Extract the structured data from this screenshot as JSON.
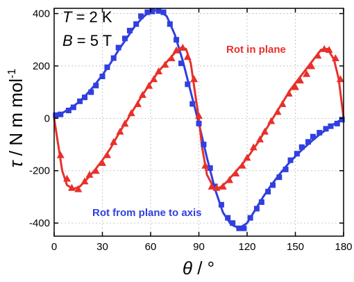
{
  "chart_data": {
    "type": "scatter",
    "xlabel": "θ / °",
    "ylabel": "τ / N m mol-1",
    "xlim": [
      0,
      180
    ],
    "ylim": [
      -450,
      420
    ],
    "xticks": [
      0,
      30,
      60,
      90,
      120,
      150,
      180
    ],
    "yticks": [
      -400,
      -200,
      0,
      200,
      400
    ],
    "grid": true,
    "annotations": {
      "temperature": "T = 2 K",
      "field": "B = 5 T"
    },
    "series": [
      {
        "name": "Rot from plane to axis",
        "color": "#2f3fe0",
        "marker": "square",
        "points": [
          [
            1,
            12
          ],
          [
            4,
            15
          ],
          [
            9,
            30
          ],
          [
            12,
            42
          ],
          [
            16,
            65
          ],
          [
            19,
            80
          ],
          [
            23,
            100
          ],
          [
            26,
            125
          ],
          [
            30,
            160
          ],
          [
            33,
            195
          ],
          [
            37,
            230
          ],
          [
            40,
            270
          ],
          [
            44,
            305
          ],
          [
            47,
            335
          ],
          [
            51,
            360
          ],
          [
            54,
            390
          ],
          [
            58,
            405
          ],
          [
            61,
            408
          ],
          [
            65,
            410
          ],
          [
            68,
            405
          ],
          [
            72,
            360
          ],
          [
            76,
            300
          ],
          [
            79,
            210
          ],
          [
            83,
            130
          ],
          [
            86,
            55
          ],
          [
            90,
            -20
          ],
          [
            93,
            -100
          ],
          [
            97,
            -190
          ],
          [
            100,
            -260
          ],
          [
            104,
            -330
          ],
          [
            108,
            -380
          ],
          [
            111,
            -400
          ],
          [
            115,
            -420
          ],
          [
            118,
            -420
          ],
          [
            122,
            -380
          ],
          [
            126,
            -345
          ],
          [
            129,
            -320
          ],
          [
            133,
            -280
          ],
          [
            136,
            -255
          ],
          [
            140,
            -225
          ],
          [
            144,
            -195
          ],
          [
            147,
            -160
          ],
          [
            151,
            -135
          ],
          [
            154,
            -110
          ],
          [
            158,
            -90
          ],
          [
            161,
            -70
          ],
          [
            165,
            -55
          ],
          [
            169,
            -40
          ],
          [
            172,
            -30
          ],
          [
            176,
            -20
          ],
          [
            179,
            -5
          ]
        ],
        "fit": [
          [
            0,
            0
          ],
          [
            5,
            20
          ],
          [
            10,
            38
          ],
          [
            15,
            60
          ],
          [
            20,
            90
          ],
          [
            25,
            125
          ],
          [
            30,
            165
          ],
          [
            35,
            210
          ],
          [
            40,
            260
          ],
          [
            45,
            305
          ],
          [
            50,
            350
          ],
          [
            55,
            385
          ],
          [
            60,
            410
          ],
          [
            65,
            413
          ],
          [
            70,
            390
          ],
          [
            75,
            320
          ],
          [
            80,
            220
          ],
          [
            85,
            100
          ],
          [
            90,
            -20
          ],
          [
            95,
            -150
          ],
          [
            100,
            -270
          ],
          [
            105,
            -360
          ],
          [
            110,
            -405
          ],
          [
            115,
            -420
          ],
          [
            120,
            -400
          ],
          [
            125,
            -350
          ],
          [
            130,
            -300
          ],
          [
            135,
            -255
          ],
          [
            140,
            -215
          ],
          [
            145,
            -178
          ],
          [
            150,
            -145
          ],
          [
            155,
            -115
          ],
          [
            160,
            -88
          ],
          [
            165,
            -62
          ],
          [
            170,
            -40
          ],
          [
            175,
            -18
          ],
          [
            180,
            0
          ]
        ]
      },
      {
        "name": "Rot in plane",
        "color": "#e8302a",
        "marker": "triangle",
        "points": [
          [
            4,
            -140
          ],
          [
            8,
            -230
          ],
          [
            11,
            -265
          ],
          [
            15,
            -270
          ],
          [
            19,
            -240
          ],
          [
            22,
            -215
          ],
          [
            26,
            -200
          ],
          [
            30,
            -170
          ],
          [
            33,
            -140
          ],
          [
            37,
            -90
          ],
          [
            41,
            -50
          ],
          [
            44,
            -20
          ],
          [
            48,
            20
          ],
          [
            52,
            55
          ],
          [
            55,
            90
          ],
          [
            59,
            125
          ],
          [
            62,
            150
          ],
          [
            65,
            180
          ],
          [
            69,
            205
          ],
          [
            73,
            230
          ],
          [
            76,
            260
          ],
          [
            80,
            270
          ],
          [
            83,
            235
          ],
          [
            87,
            150
          ],
          [
            90,
            10
          ],
          [
            94,
            -180
          ],
          [
            98,
            -260
          ],
          [
            101,
            -265
          ],
          [
            105,
            -260
          ],
          [
            109,
            -235
          ],
          [
            113,
            -210
          ],
          [
            117,
            -180
          ],
          [
            120,
            -150
          ],
          [
            124,
            -110
          ],
          [
            128,
            -80
          ],
          [
            131,
            -50
          ],
          [
            135,
            -10
          ],
          [
            139,
            25
          ],
          [
            142,
            55
          ],
          [
            146,
            95
          ],
          [
            150,
            120
          ],
          [
            153,
            145
          ],
          [
            157,
            170
          ],
          [
            160,
            200
          ],
          [
            164,
            240
          ],
          [
            168,
            265
          ],
          [
            171,
            262
          ],
          [
            175,
            230
          ],
          [
            178,
            150
          ]
        ],
        "fit": [
          [
            0,
            0
          ],
          [
            2,
            -80
          ],
          [
            5,
            -200
          ],
          [
            8,
            -255
          ],
          [
            12,
            -270
          ],
          [
            16,
            -260
          ],
          [
            20,
            -235
          ],
          [
            25,
            -200
          ],
          [
            30,
            -160
          ],
          [
            35,
            -115
          ],
          [
            40,
            -60
          ],
          [
            45,
            -10
          ],
          [
            50,
            40
          ],
          [
            55,
            90
          ],
          [
            60,
            135
          ],
          [
            65,
            180
          ],
          [
            70,
            215
          ],
          [
            75,
            250
          ],
          [
            79,
            270
          ],
          [
            82,
            265
          ],
          [
            85,
            210
          ],
          [
            88,
            80
          ],
          [
            90,
            0
          ],
          [
            92,
            -110
          ],
          [
            95,
            -215
          ],
          [
            99,
            -262
          ],
          [
            103,
            -265
          ],
          [
            107,
            -245
          ],
          [
            112,
            -210
          ],
          [
            117,
            -175
          ],
          [
            122,
            -135
          ],
          [
            127,
            -90
          ],
          [
            132,
            -40
          ],
          [
            137,
            10
          ],
          [
            142,
            60
          ],
          [
            147,
            110
          ],
          [
            152,
            150
          ],
          [
            157,
            190
          ],
          [
            162,
            230
          ],
          [
            166,
            262
          ],
          [
            170,
            265
          ],
          [
            174,
            225
          ],
          [
            177,
            150
          ],
          [
            180,
            0
          ]
        ]
      }
    ]
  }
}
